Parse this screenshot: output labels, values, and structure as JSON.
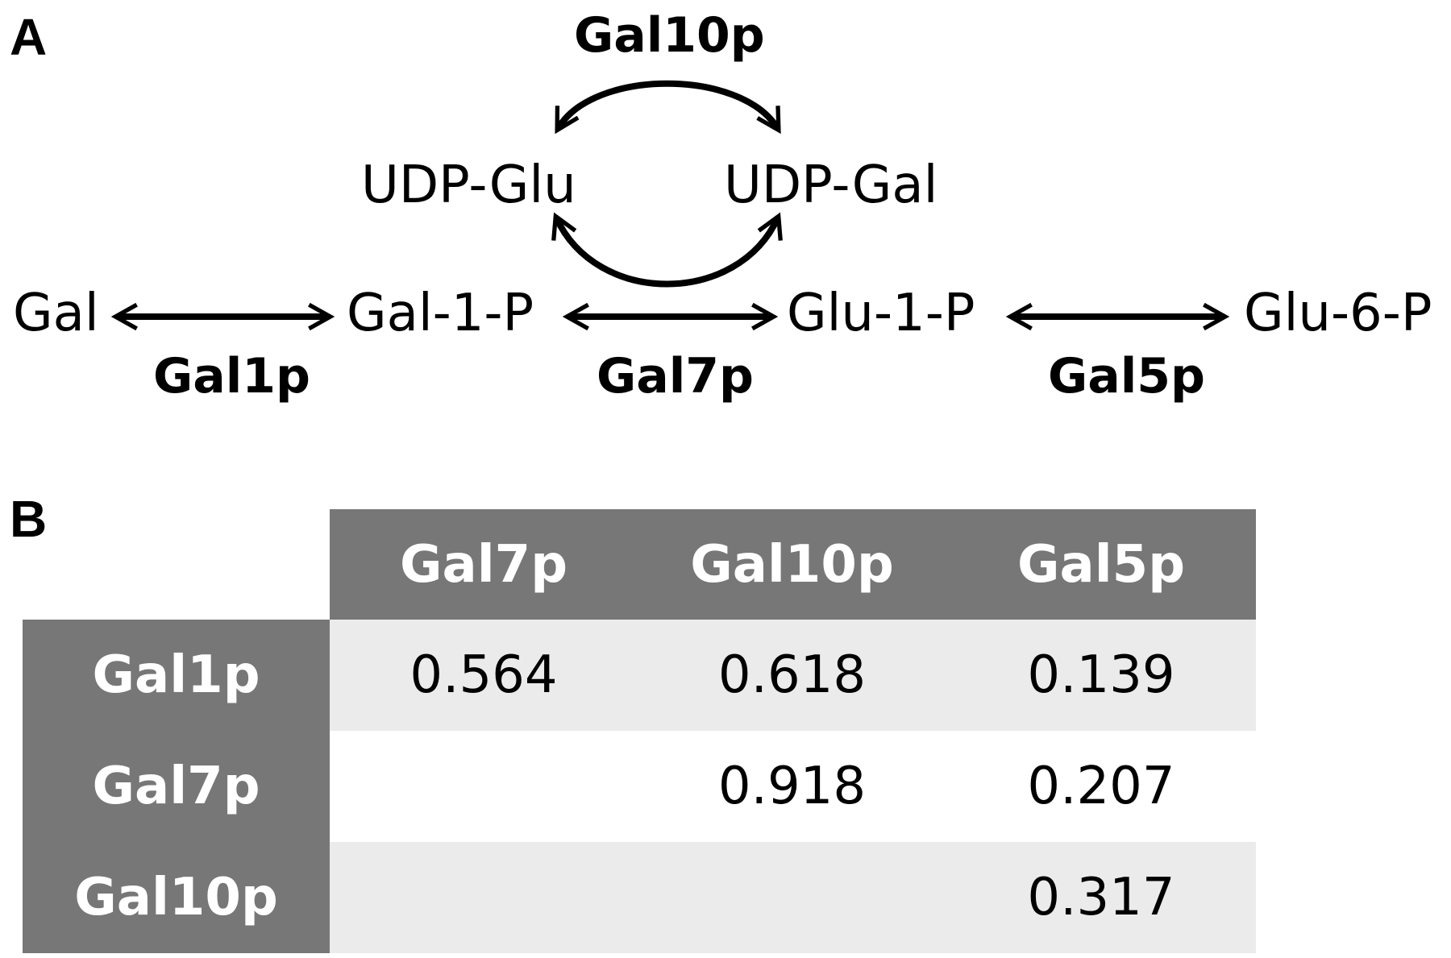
{
  "panelA": {
    "label": "A",
    "nodes": {
      "gal": "Gal",
      "gal1p": "Gal-1-P",
      "glu1p": "Glu-1-P",
      "glu6p": "Glu-6-P",
      "udpGlu": "UDP-Glu",
      "udpGal": "UDP-Gal"
    },
    "enzymes": {
      "gal10p": "Gal10p",
      "gal1p": "Gal1p",
      "gal7p": "Gal7p",
      "gal5p": "Gal5p"
    }
  },
  "panelB": {
    "label": "B",
    "columns": [
      "Gal7p",
      "Gal10p",
      "Gal5p"
    ],
    "rows": [
      {
        "label": "Gal1p",
        "values": [
          "0.564",
          "0.618",
          "0.139"
        ]
      },
      {
        "label": "Gal7p",
        "values": [
          "",
          "0.918",
          "0.207"
        ]
      },
      {
        "label": "Gal10p",
        "values": [
          "",
          "",
          "0.317"
        ]
      }
    ]
  }
}
